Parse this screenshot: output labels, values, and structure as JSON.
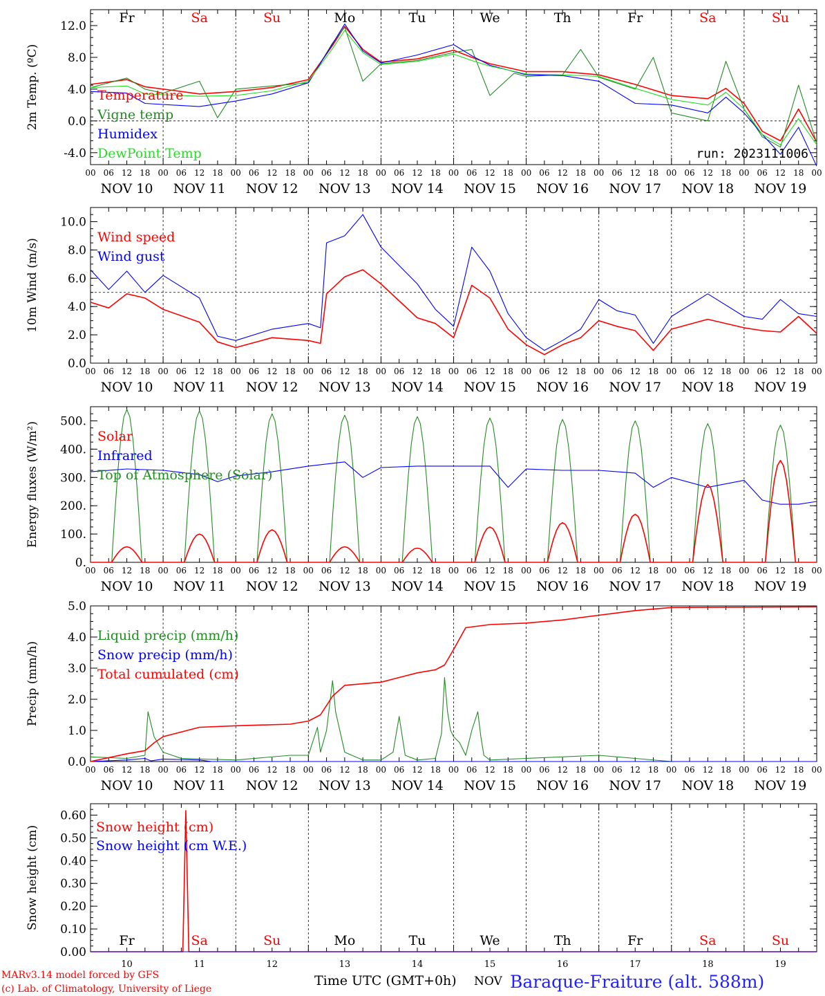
{
  "footer": {
    "model": "MARv3.14 model forced by GFS",
    "copyright": "(c) Lab. of Climatology, University of Liege",
    "time_label": "Time UTC (GMT+0h)",
    "month": "NOV",
    "station": "Baraque-Fraiture (alt. 588m)"
  },
  "run_label": "run: 2023111006",
  "days": [
    {
      "name": "Fr",
      "date": "NOV 10",
      "num": "10",
      "weekend": false
    },
    {
      "name": "Sa",
      "date": "NOV 11",
      "num": "11",
      "weekend": true
    },
    {
      "name": "Su",
      "date": "NOV 12",
      "num": "12",
      "weekend": true
    },
    {
      "name": "Mo",
      "date": "NOV 13",
      "num": "13",
      "weekend": false
    },
    {
      "name": "Tu",
      "date": "NOV 14",
      "num": "14",
      "weekend": false
    },
    {
      "name": "We",
      "date": "NOV 15",
      "num": "15",
      "weekend": false
    },
    {
      "name": "Th",
      "date": "NOV 16",
      "num": "16",
      "weekend": false
    },
    {
      "name": "Fr",
      "date": "NOV 17",
      "num": "17",
      "weekend": false
    },
    {
      "name": "Sa",
      "date": "NOV 18",
      "num": "18",
      "weekend": true
    },
    {
      "name": "Su",
      "date": "NOV 19",
      "num": "19",
      "weekend": true
    }
  ],
  "hour_ticks": [
    "00",
    "06",
    "12",
    "18"
  ],
  "colors": {
    "red": "#ff0000",
    "green": "#228b22",
    "blue": "#0000ff",
    "lightgreen": "#22dd22",
    "weekend": "#ff0000",
    "weekday": "#000000",
    "station": "#2222ff"
  },
  "chart_data": [
    {
      "type": "line",
      "ylabel": "2m Temp. (ºC)",
      "ylim": [
        -5.5,
        14.0
      ],
      "yticks": [
        -4.0,
        0.0,
        4.0,
        8.0,
        12.0
      ],
      "ytick_labels": [
        "-4.0",
        "0.0",
        "4.0",
        "8.0",
        "12.0"
      ],
      "hline": 0.0,
      "x_unit": "hours since NOV 10 00 UTC",
      "series": [
        {
          "name": "Temperature",
          "color": "red",
          "x": [
            0,
            12,
            18,
            36,
            48,
            60,
            72,
            80,
            84,
            90,
            96,
            108,
            120,
            126,
            132,
            144,
            156,
            168,
            180,
            192,
            204,
            210,
            216,
            222,
            228,
            234,
            240
          ],
          "y": [
            4.6,
            5.2,
            4.3,
            3.4,
            3.7,
            4.2,
            5.2,
            9.5,
            11.9,
            9.0,
            7.4,
            7.8,
            8.9,
            8.0,
            7.2,
            6.2,
            6.2,
            5.8,
            4.6,
            3.2,
            2.8,
            4.1,
            2.2,
            -1.3,
            -2.5,
            1.5,
            -2.7
          ]
        },
        {
          "name": "Vigne temp",
          "color": "green",
          "x": [
            0,
            12,
            18,
            24,
            36,
            42,
            48,
            60,
            72,
            80,
            84,
            90,
            96,
            108,
            120,
            126,
            132,
            140,
            144,
            156,
            162,
            168,
            180,
            186,
            192,
            204,
            210,
            216,
            222,
            228,
            234,
            240
          ],
          "y": [
            4.2,
            5.4,
            4.0,
            3.5,
            5.0,
            0.4,
            4.0,
            4.4,
            4.8,
            9.8,
            11.8,
            5.0,
            7.2,
            7.6,
            8.6,
            9.0,
            3.2,
            6.0,
            5.6,
            5.8,
            9.0,
            5.5,
            4.0,
            8.0,
            1.0,
            0.0,
            7.5,
            1.5,
            -2.0,
            -3.3,
            4.5,
            -2.8
          ]
        },
        {
          "name": "Humidex",
          "color": "blue",
          "x": [
            0,
            12,
            18,
            36,
            48,
            60,
            72,
            80,
            84,
            90,
            96,
            108,
            120,
            126,
            132,
            144,
            156,
            168,
            180,
            192,
            204,
            210,
            216,
            222,
            228,
            234,
            240
          ],
          "y": [
            3.7,
            3.5,
            2.2,
            1.8,
            2.5,
            3.4,
            4.8,
            9.7,
            12.2,
            8.8,
            7.3,
            8.3,
            9.6,
            8.2,
            7.0,
            5.8,
            5.7,
            5.0,
            2.2,
            2.0,
            1.0,
            3.0,
            1.0,
            -1.7,
            -4.2,
            -0.8,
            -5.7
          ]
        },
        {
          "name": "DewPoint Temp",
          "color": "lightgreen",
          "x": [
            0,
            12,
            18,
            36,
            48,
            60,
            72,
            80,
            84,
            90,
            96,
            108,
            120,
            126,
            132,
            144,
            156,
            168,
            180,
            192,
            204,
            210,
            216,
            222,
            228,
            234,
            240
          ],
          "y": [
            4.2,
            4.4,
            3.4,
            3.1,
            3.2,
            3.8,
            5.0,
            9.1,
            11.4,
            8.6,
            7.1,
            7.5,
            8.4,
            7.6,
            6.9,
            5.9,
            5.8,
            5.6,
            4.1,
            2.7,
            2.0,
            3.6,
            1.5,
            -1.7,
            -3.0,
            0.3,
            -3.0
          ]
        }
      ]
    },
    {
      "type": "line",
      "ylabel": "10m Wind (m/s)",
      "ylim": [
        0.0,
        11.0
      ],
      "yticks": [
        0.0,
        2.0,
        4.0,
        6.0,
        8.0,
        10.0
      ],
      "ytick_labels": [
        "0.0",
        "2.0",
        "4.0",
        "6.0",
        "8.0",
        "10.0"
      ],
      "hline": 5.0,
      "x_unit": "hours since NOV 10 00 UTC",
      "series": [
        {
          "name": "Wind speed",
          "color": "red",
          "x": [
            0,
            6,
            12,
            18,
            24,
            36,
            42,
            48,
            60,
            72,
            76,
            78,
            84,
            90,
            96,
            108,
            114,
            120,
            126,
            132,
            138,
            144,
            150,
            156,
            162,
            168,
            174,
            180,
            186,
            192,
            204,
            216,
            222,
            228,
            234,
            240
          ],
          "y": [
            4.3,
            3.9,
            4.9,
            4.6,
            3.8,
            2.9,
            1.5,
            1.1,
            1.8,
            1.6,
            1.4,
            4.9,
            6.1,
            6.6,
            5.6,
            3.2,
            2.8,
            1.8,
            5.5,
            4.6,
            2.4,
            1.3,
            0.6,
            1.3,
            1.8,
            3.0,
            2.6,
            2.3,
            0.9,
            2.4,
            3.1,
            2.5,
            2.3,
            2.2,
            3.3,
            2.1
          ]
        },
        {
          "name": "Wind gust",
          "color": "blue",
          "x": [
            0,
            6,
            12,
            18,
            24,
            36,
            42,
            48,
            60,
            72,
            76,
            78,
            84,
            90,
            96,
            108,
            114,
            120,
            126,
            132,
            138,
            144,
            150,
            156,
            162,
            168,
            174,
            180,
            186,
            192,
            204,
            216,
            222,
            228,
            234,
            240
          ],
          "y": [
            6.6,
            5.2,
            6.5,
            5.0,
            6.2,
            4.6,
            1.9,
            1.6,
            2.4,
            2.8,
            2.5,
            8.5,
            9.0,
            10.5,
            8.2,
            5.6,
            3.8,
            2.6,
            8.2,
            6.5,
            3.5,
            1.8,
            0.9,
            1.6,
            2.4,
            4.5,
            3.7,
            3.4,
            1.4,
            3.3,
            4.9,
            3.3,
            3.1,
            4.5,
            3.5,
            3.3
          ]
        }
      ]
    },
    {
      "type": "line",
      "ylabel": "Energy fluxes (W/m²)",
      "ylim": [
        0.0,
        550.0
      ],
      "yticks": [
        0,
        100,
        200,
        300,
        400,
        500
      ],
      "ytick_labels": [
        "0.",
        "100.",
        "200.",
        "300.",
        "400.",
        "500."
      ],
      "x_unit": "hours since NOV 10 00 UTC",
      "series": [
        {
          "name": "Solar",
          "color": "red",
          "daily_peaks": [
            55,
            100,
            115,
            55,
            50,
            125,
            140,
            170,
            275,
            360
          ],
          "daylight": [
            7,
            17
          ]
        },
        {
          "name": "Infrared",
          "color": "blue",
          "x": [
            0,
            12,
            24,
            36,
            42,
            48,
            60,
            72,
            84,
            90,
            96,
            108,
            120,
            132,
            138,
            144,
            156,
            168,
            180,
            186,
            192,
            204,
            216,
            222,
            228,
            234,
            240
          ],
          "y": [
            320,
            330,
            325,
            310,
            285,
            305,
            320,
            340,
            355,
            300,
            335,
            340,
            340,
            340,
            265,
            330,
            325,
            325,
            315,
            265,
            300,
            265,
            290,
            220,
            205,
            205,
            215
          ]
        },
        {
          "name": "Top of Atmosphere (Solar)",
          "color": "green",
          "daily_peaks": [
            540,
            535,
            525,
            520,
            515,
            510,
            505,
            500,
            490,
            485
          ],
          "daylight": [
            7,
            17
          ]
        }
      ]
    },
    {
      "type": "line",
      "ylabel": "Precip (mm/h)",
      "ylim": [
        0.0,
        5.0
      ],
      "yticks": [
        0.0,
        1.0,
        2.0,
        3.0,
        4.0,
        5.0
      ],
      "ytick_labels": [
        "0.0",
        "1.0",
        "2.0",
        "3.0",
        "4.0",
        "5.0"
      ],
      "x_unit": "hours since NOV 10 00 UTC",
      "series": [
        {
          "name": "Liquid precip (mm/h)",
          "color": "green",
          "x": [
            0,
            12,
            18,
            19,
            21,
            24,
            30,
            48,
            66,
            72,
            75,
            76,
            78,
            80,
            81,
            84,
            90,
            96,
            100,
            102,
            104,
            108,
            114,
            116,
            117,
            118,
            119,
            120,
            122,
            124,
            126,
            128,
            129,
            130,
            132,
            144,
            168,
            180,
            192,
            240
          ],
          "y": [
            0.15,
            0.1,
            0.2,
            1.6,
            0.8,
            0.3,
            0.1,
            0.05,
            0.2,
            0.2,
            1.1,
            0.3,
            1.0,
            2.6,
            1.6,
            0.3,
            0.05,
            0.05,
            0.3,
            1.45,
            0.2,
            0.05,
            0.1,
            0.9,
            2.7,
            1.6,
            1.0,
            0.8,
            0.6,
            0.2,
            1.0,
            1.6,
            0.8,
            0.2,
            0.05,
            0.1,
            0.2,
            0.1,
            0.0,
            0.0
          ]
        },
        {
          "name": "Snow precip (mm/h)",
          "color": "blue",
          "x": [
            0,
            12,
            18,
            20,
            24,
            36,
            40,
            240
          ],
          "y": [
            0.0,
            0.05,
            0.1,
            0.02,
            0.08,
            0.05,
            0.0,
            0.0
          ]
        },
        {
          "name": "Total cumulated (cm)",
          "color": "red",
          "x": [
            0,
            12,
            18,
            21,
            24,
            36,
            48,
            66,
            72,
            76,
            80,
            84,
            96,
            102,
            108,
            114,
            117,
            120,
            124,
            132,
            144,
            156,
            168,
            180,
            192,
            240
          ],
          "y": [
            0.0,
            0.25,
            0.35,
            0.6,
            0.8,
            1.1,
            1.15,
            1.2,
            1.3,
            1.5,
            2.1,
            2.45,
            2.55,
            2.7,
            2.85,
            2.95,
            3.1,
            3.6,
            4.3,
            4.4,
            4.45,
            4.55,
            4.7,
            4.85,
            4.95,
            4.97
          ]
        }
      ]
    },
    {
      "type": "line",
      "ylabel": "Snow height (cm)",
      "ylim": [
        0.0,
        0.65
      ],
      "yticks": [
        0.0,
        0.1,
        0.2,
        0.3,
        0.4,
        0.5,
        0.6
      ],
      "ytick_labels": [
        "0.00",
        "0.10",
        "0.20",
        "0.30",
        "0.40",
        "0.50",
        "0.60"
      ],
      "x_unit": "hours since NOV 10 00 UTC",
      "series": [
        {
          "name": "Snow height (cm)",
          "color": "red",
          "x": [
            0,
            30.5,
            31.5,
            32.5,
            240
          ],
          "y": [
            0.0,
            0.0,
            0.62,
            0.0,
            0.0
          ]
        },
        {
          "name": "Snow height (cm W.E.)",
          "color": "blue",
          "x": [
            0,
            240
          ],
          "y": [
            0.0,
            0.0
          ]
        }
      ]
    }
  ]
}
